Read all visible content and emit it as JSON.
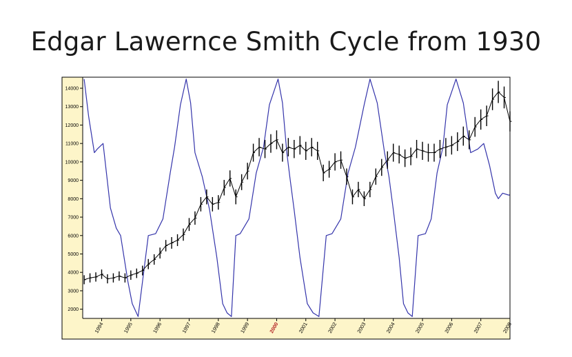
{
  "slide": {
    "title": "Edgar Lawernce Smith Cycle from 1930"
  },
  "chart_data": {
    "type": "line",
    "title": "Edgar Lawernce Smith Cycle from 1930",
    "xlabel": "",
    "ylabel": "",
    "x_range": [
      1993.35,
      2008.0
    ],
    "ylim": [
      1500,
      14600
    ],
    "y_ticks": [
      2000,
      3000,
      4000,
      5000,
      6000,
      7000,
      8000,
      9000,
      10000,
      11000,
      12000,
      13000,
      14000
    ],
    "x_ticks": [
      "1994",
      "1995",
      "1996",
      "1997",
      "1998",
      "1999",
      "2000",
      "2001",
      "2002",
      "2003",
      "2004",
      "2005",
      "2006",
      "2007",
      "2008"
    ],
    "highlight_tick": "2000",
    "highlight_color": "#b22222",
    "plot_background": "#ffffff",
    "tick_strip_background": "#fdf5c9",
    "series": [
      {
        "kind": "price-bars",
        "color": "#000000",
        "x": [
          1993.4,
          1993.6,
          1993.8,
          1994.0,
          1994.2,
          1994.4,
          1994.6,
          1994.8,
          1995.0,
          1995.2,
          1995.4,
          1995.6,
          1995.8,
          1996.0,
          1996.2,
          1996.4,
          1996.6,
          1996.8,
          1997.0,
          1997.2,
          1997.4,
          1997.6,
          1997.8,
          1998.0,
          1998.2,
          1998.4,
          1998.6,
          1998.8,
          1999.0,
          1999.2,
          1999.4,
          1999.6,
          1999.8,
          2000.0,
          2000.2,
          2000.4,
          2000.6,
          2000.8,
          2001.0,
          2001.2,
          2001.4,
          2001.6,
          2001.8,
          2002.0,
          2002.2,
          2002.4,
          2002.6,
          2002.8,
          2003.0,
          2003.2,
          2003.4,
          2003.6,
          2003.8,
          2004.0,
          2004.2,
          2004.4,
          2004.6,
          2004.8,
          2005.0,
          2005.2,
          2005.4,
          2005.6,
          2005.8,
          2006.0,
          2006.2,
          2006.4,
          2006.6,
          2006.8,
          2007.0,
          2007.2,
          2007.4,
          2007.6,
          2007.8,
          2008.0
        ],
        "y": [
          3600,
          3700,
          3750,
          3900,
          3650,
          3700,
          3800,
          3700,
          3850,
          3950,
          4100,
          4450,
          4700,
          5050,
          5450,
          5600,
          5750,
          6050,
          6600,
          6950,
          7700,
          8100,
          7700,
          7800,
          8600,
          9100,
          8100,
          8900,
          9500,
          10500,
          10800,
          10700,
          11000,
          11200,
          10500,
          10800,
          10700,
          10900,
          10600,
          10800,
          10600,
          9400,
          9600,
          10000,
          10100,
          9200,
          8100,
          8500,
          8000,
          8500,
          9200,
          9700,
          10100,
          10500,
          10400,
          10200,
          10300,
          10700,
          10600,
          10500,
          10500,
          10700,
          10800,
          10900,
          11100,
          11400,
          11200,
          11900,
          12300,
          12500,
          13400,
          13800,
          13500,
          12200
        ]
      },
      {
        "kind": "cycle",
        "color": "#3333aa",
        "x": [
          1993.4,
          1993.55,
          1993.75,
          1993.85,
          1994.05,
          1994.3,
          1994.5,
          1994.65,
          1994.9,
          1995.05,
          1995.25,
          1995.6,
          1995.85,
          1996.1,
          1996.35,
          1996.5,
          1996.7,
          1996.9,
          1997.05,
          1997.2,
          1997.45,
          1997.7,
          1997.95,
          1998.15,
          1998.3,
          1998.45,
          1998.6,
          1998.75,
          1999.05,
          1999.3,
          1999.55,
          1999.75,
          2000.05,
          2000.2,
          2000.35,
          2000.45,
          2000.6,
          2000.8,
          2001.05,
          2001.25,
          2001.45,
          2001.7,
          2001.9,
          2002.2,
          2002.45,
          2002.7,
          2003.0,
          2003.2,
          2003.45,
          2003.7,
          2003.85,
          2004.0,
          2004.2,
          2004.35,
          2004.5,
          2004.65,
          2004.85,
          2005.1,
          2005.3,
          2005.5,
          2005.7,
          2005.85,
          2006.15,
          2006.4,
          2006.65,
          2006.9,
          2007.1,
          2007.3,
          2007.5,
          2007.6,
          2007.75,
          2007.95,
          2008.0
        ],
        "y": [
          14500,
          12500,
          10500,
          10700,
          11000,
          7500,
          6400,
          6000,
          3500,
          2300,
          1600,
          6000,
          6100,
          6900,
          9400,
          10800,
          13100,
          14500,
          13200,
          10500,
          9200,
          7400,
          4800,
          2300,
          1800,
          1600,
          6000,
          6100,
          6900,
          9400,
          10800,
          13100,
          14500,
          13200,
          10500,
          9200,
          7400,
          4800,
          2300,
          1800,
          1600,
          6000,
          6100,
          6900,
          9400,
          10800,
          13100,
          14500,
          13200,
          10500,
          9200,
          7400,
          4800,
          2300,
          1800,
          1600,
          6000,
          6100,
          6900,
          9400,
          10800,
          13100,
          14500,
          13200,
          10500,
          10700,
          11000,
          9800,
          8300,
          8000,
          8300,
          8200,
          8200
        ]
      }
    ]
  }
}
